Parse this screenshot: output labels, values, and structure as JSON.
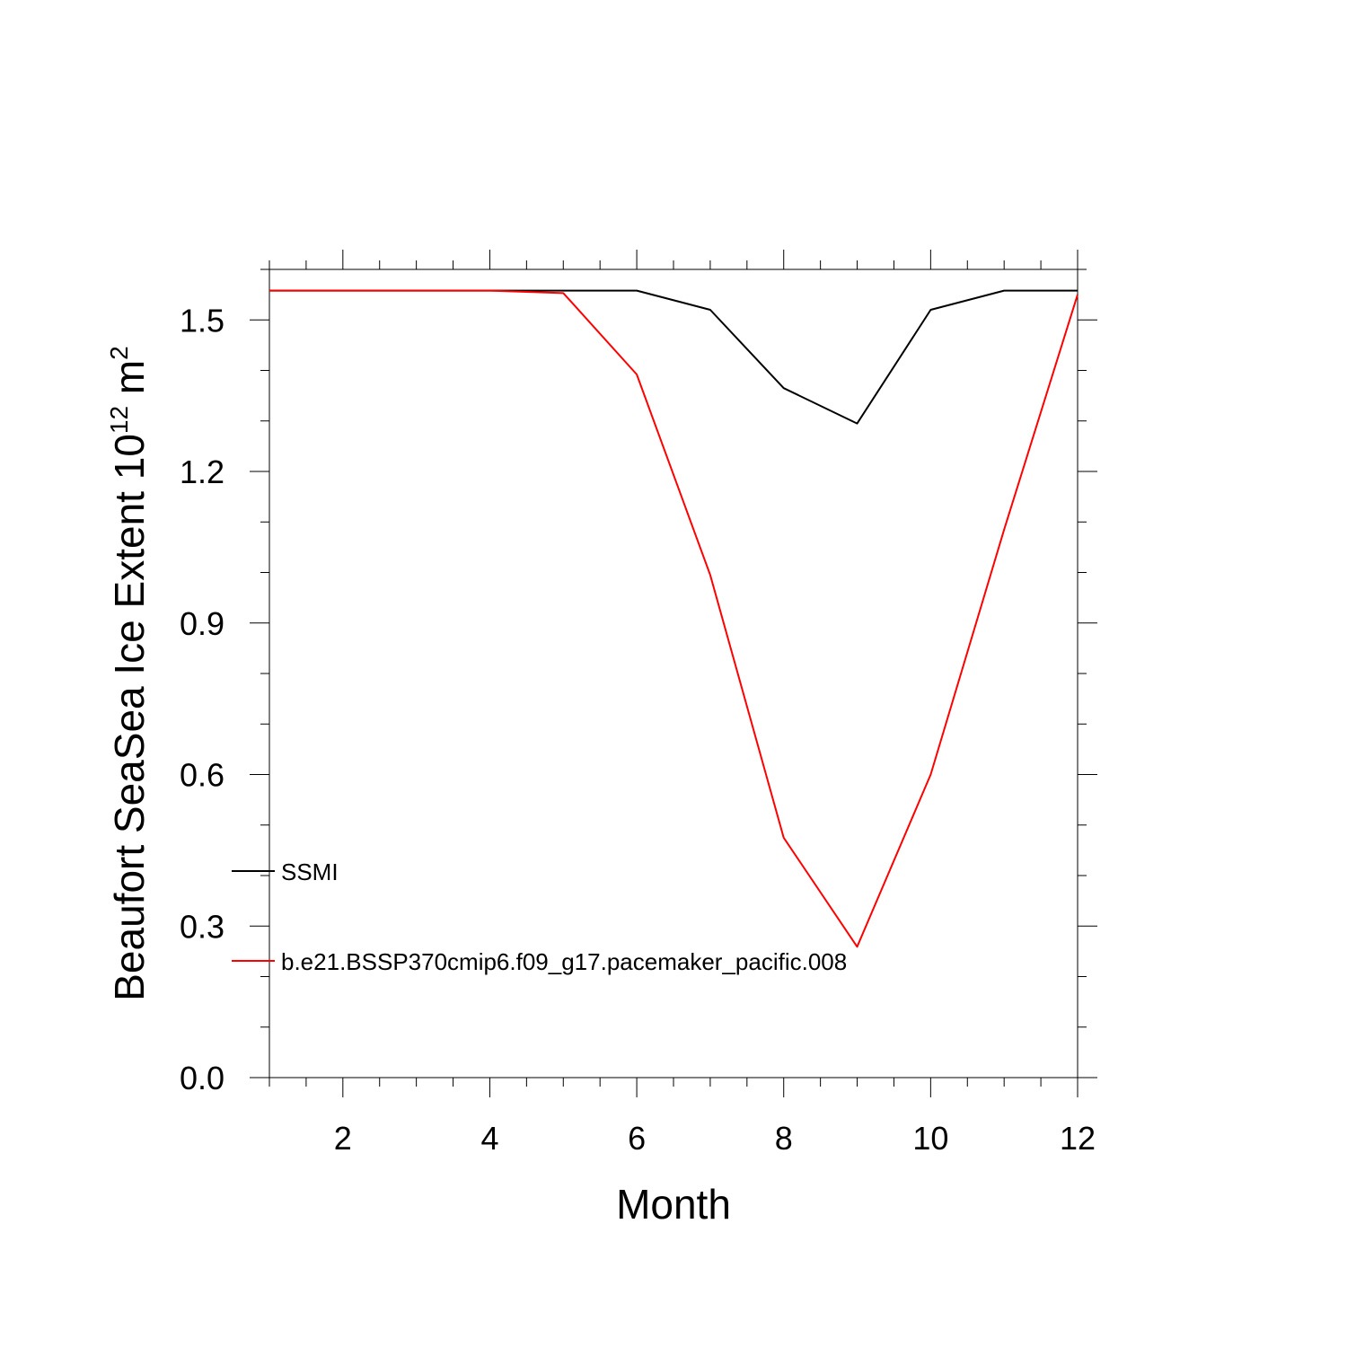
{
  "chart_data": {
    "type": "line",
    "title": "",
    "xlabel": "Month",
    "ylabel": {
      "main": "Beaufort SeaSea Ice Extent 10",
      "superscript": "12",
      "unit": " m",
      "unit_superscript": "2"
    },
    "xlim": [
      1,
      12
    ],
    "ylim": [
      0,
      1.6
    ],
    "xticks": [
      2,
      4,
      6,
      8,
      10,
      12
    ],
    "yticks": [
      0.0,
      0.3,
      0.6,
      0.9,
      1.2,
      1.5
    ],
    "ytick_labels": [
      "0.0",
      "0.3",
      "0.6",
      "0.9",
      "1.2",
      "1.5"
    ],
    "grid": false,
    "legend_position": "inside-bottom-left",
    "x": [
      1,
      2,
      3,
      4,
      5,
      6,
      7,
      8,
      9,
      10,
      11,
      12
    ],
    "series": [
      {
        "name": "SSMI",
        "color": "#000000",
        "values": [
          1.558,
          1.558,
          1.558,
          1.558,
          1.558,
          1.558,
          1.52,
          1.365,
          1.295,
          1.52,
          1.558,
          1.558
        ]
      },
      {
        "name": "b.e21.BSSP370cmip6.f09_g17.pacemaker_pacific.008",
        "color": "#ff0000",
        "values": [
          1.558,
          1.558,
          1.558,
          1.558,
          1.553,
          1.392,
          0.995,
          0.475,
          0.259,
          0.6,
          1.085,
          1.55
        ]
      }
    ]
  }
}
